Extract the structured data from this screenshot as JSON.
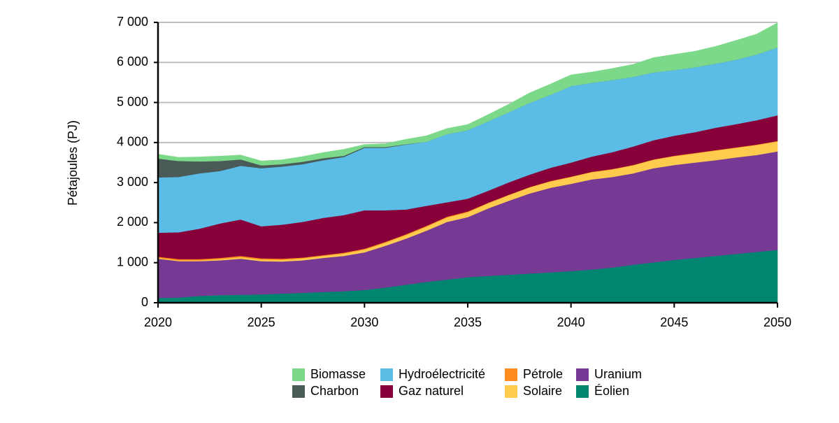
{
  "chart_data": {
    "type": "area",
    "stacked": true,
    "title": "",
    "xlabel": "",
    "ylabel": "Pétajoules (PJ)",
    "x": [
      2020,
      2021,
      2022,
      2023,
      2024,
      2025,
      2026,
      2027,
      2028,
      2029,
      2030,
      2031,
      2032,
      2033,
      2034,
      2035,
      2036,
      2037,
      2038,
      2039,
      2040,
      2041,
      2042,
      2043,
      2044,
      2045,
      2046,
      2047,
      2048,
      2049,
      2050
    ],
    "xlim": [
      2020,
      2050
    ],
    "x_ticks": [
      {
        "value": 2020,
        "label": "2020"
      },
      {
        "value": 2025,
        "label": "2025"
      },
      {
        "value": 2030,
        "label": "2030"
      },
      {
        "value": 2035,
        "label": "2035"
      },
      {
        "value": 2040,
        "label": "2040"
      },
      {
        "value": 2045,
        "label": "2045"
      },
      {
        "value": 2050,
        "label": "2050"
      }
    ],
    "ylim": [
      0,
      7000
    ],
    "y_ticks": [
      {
        "value": 0,
        "label": "0"
      },
      {
        "value": 1000,
        "label": "1 000"
      },
      {
        "value": 2000,
        "label": "2 000"
      },
      {
        "value": 3000,
        "label": "3 000"
      },
      {
        "value": 4000,
        "label": "4 000"
      },
      {
        "value": 5000,
        "label": "5 000"
      },
      {
        "value": 6000,
        "label": "6 000"
      },
      {
        "value": 7000,
        "label": "7 000"
      }
    ],
    "grid": {
      "horizontal": true,
      "vertical": false,
      "color": "#bfbfbf"
    },
    "legend": {
      "position": "bottom",
      "columns": 4
    },
    "series": [
      {
        "name": "Éolien",
        "color": "#008570",
        "values": [
          120,
          130,
          170,
          190,
          200,
          210,
          230,
          250,
          270,
          290,
          320,
          380,
          450,
          520,
          580,
          640,
          670,
          700,
          730,
          760,
          790,
          830,
          880,
          950,
          1010,
          1070,
          1120,
          1170,
          1220,
          1270,
          1320
        ]
      },
      {
        "name": "Uranium",
        "color": "#763a95",
        "values": [
          980,
          910,
          870,
          870,
          900,
          830,
          800,
          810,
          850,
          880,
          940,
          1040,
          1150,
          1280,
          1440,
          1500,
          1690,
          1850,
          2000,
          2110,
          2180,
          2250,
          2260,
          2280,
          2350,
          2370,
          2380,
          2390,
          2410,
          2420,
          2460
        ]
      },
      {
        "name": "Solaire",
        "color": "#ffcb4f",
        "values": [
          20,
          20,
          20,
          30,
          40,
          40,
          40,
          50,
          50,
          60,
          70,
          80,
          90,
          100,
          110,
          120,
          130,
          140,
          150,
          160,
          170,
          180,
          190,
          200,
          210,
          220,
          230,
          240,
          240,
          250,
          250
        ]
      },
      {
        "name": "Pétrole",
        "color": "#ff8b1f",
        "values": [
          30,
          30,
          30,
          30,
          30,
          30,
          30,
          20,
          20,
          20,
          20,
          20,
          20,
          20,
          20,
          20,
          10,
          10,
          10,
          10,
          10,
          10,
          10,
          10,
          10,
          10,
          10,
          10,
          10,
          10,
          10
        ]
      },
      {
        "name": "Gaz naturel",
        "color": "#88003a",
        "values": [
          600,
          670,
          760,
          860,
          910,
          800,
          850,
          890,
          930,
          940,
          960,
          790,
          620,
          500,
          360,
          320,
          300,
          310,
          310,
          330,
          350,
          380,
          420,
          460,
          480,
          500,
          520,
          560,
          580,
          610,
          640
        ]
      },
      {
        "name": "Hydroélectricité",
        "color": "#5bbde6",
        "values": [
          1380,
          1380,
          1380,
          1310,
          1340,
          1450,
          1450,
          1440,
          1440,
          1450,
          1560,
          1560,
          1620,
          1600,
          1700,
          1710,
          1730,
          1750,
          1790,
          1820,
          1910,
          1840,
          1800,
          1740,
          1690,
          1640,
          1620,
          1600,
          1610,
          1640,
          1690
        ]
      },
      {
        "name": "Charbon",
        "color": "#4a5a57",
        "values": [
          470,
          400,
          300,
          250,
          160,
          70,
          60,
          60,
          50,
          30,
          20,
          20,
          10,
          0,
          0,
          0,
          0,
          0,
          0,
          0,
          0,
          0,
          0,
          0,
          0,
          0,
          0,
          0,
          0,
          0,
          0
        ]
      },
      {
        "name": "Biomasse",
        "color": "#7dd98a",
        "values": [
          110,
          90,
          110,
          120,
          110,
          110,
          110,
          130,
          140,
          160,
          60,
          80,
          120,
          150,
          140,
          140,
          170,
          200,
          250,
          270,
          280,
          270,
          290,
          310,
          370,
          390,
          400,
          430,
          480,
          510,
          620
        ]
      }
    ],
    "legend_order": [
      "Biomasse",
      "Hydroélectricité",
      "Pétrole",
      "Uranium",
      "Charbon",
      "Gaz naturel",
      "Solaire",
      "Éolien"
    ]
  }
}
